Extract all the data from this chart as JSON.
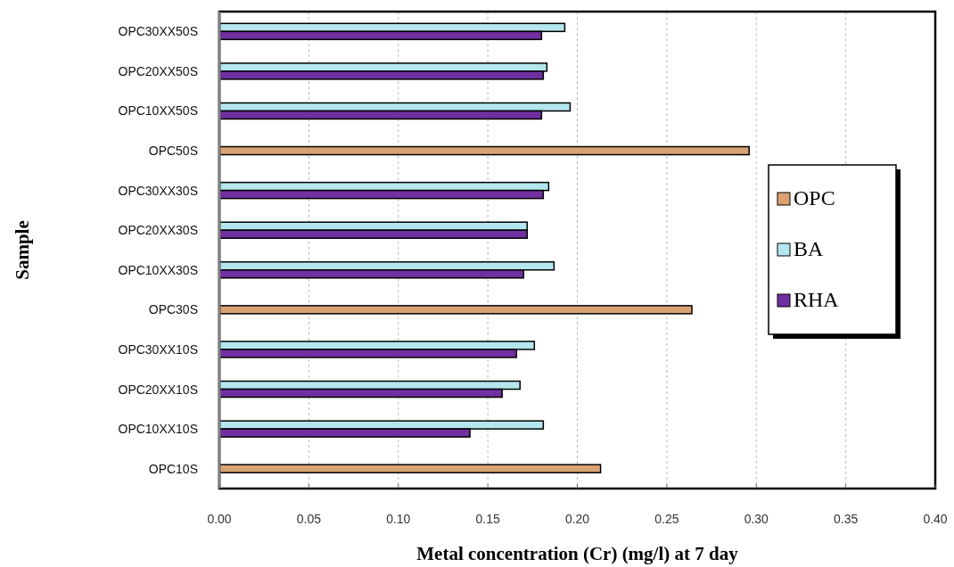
{
  "chart_data": {
    "type": "bar",
    "orientation": "horizontal",
    "xlabel": "Metal concentration (Cr) (mg/l) at 7 day",
    "ylabel": "Sample",
    "categories": [
      "OPC30XX50S",
      "OPC20XX50S",
      "OPC10XX50S",
      "OPC50S",
      "OPC30XX30S",
      "OPC20XX30S",
      "OPC10XX30S",
      "OPC30S",
      "OPC30XX10S",
      "OPC20XX10S",
      "OPC10XX10S",
      "OPC10S"
    ],
    "series": [
      {
        "name": "OPC",
        "color": "#d9a273",
        "values": [
          null,
          null,
          null,
          0.296,
          null,
          null,
          null,
          0.264,
          null,
          null,
          null,
          0.213
        ]
      },
      {
        "name": "BA",
        "color": "#b4e6ee",
        "values": [
          0.193,
          0.183,
          0.196,
          null,
          0.184,
          0.172,
          0.187,
          null,
          0.176,
          0.168,
          0.181,
          null
        ]
      },
      {
        "name": "RHA",
        "color": "#7030a0",
        "values": [
          0.18,
          0.181,
          0.18,
          null,
          0.181,
          0.172,
          0.17,
          null,
          0.166,
          0.158,
          0.14,
          null
        ]
      }
    ],
    "xlim": [
      0,
      0.4
    ],
    "xticks": [
      {
        "value": 0,
        "label": "0.00"
      },
      0.05,
      {
        "value": 0.1,
        "label": "0.10"
      },
      0.15,
      {
        "value": 0.2,
        "label": "0.20"
      },
      0.25,
      {
        "value": 0.3,
        "label": "0.30"
      },
      0.35,
      {
        "value": 0.4,
        "label": "0.40"
      }
    ],
    "grid": "x",
    "legend": "right"
  }
}
